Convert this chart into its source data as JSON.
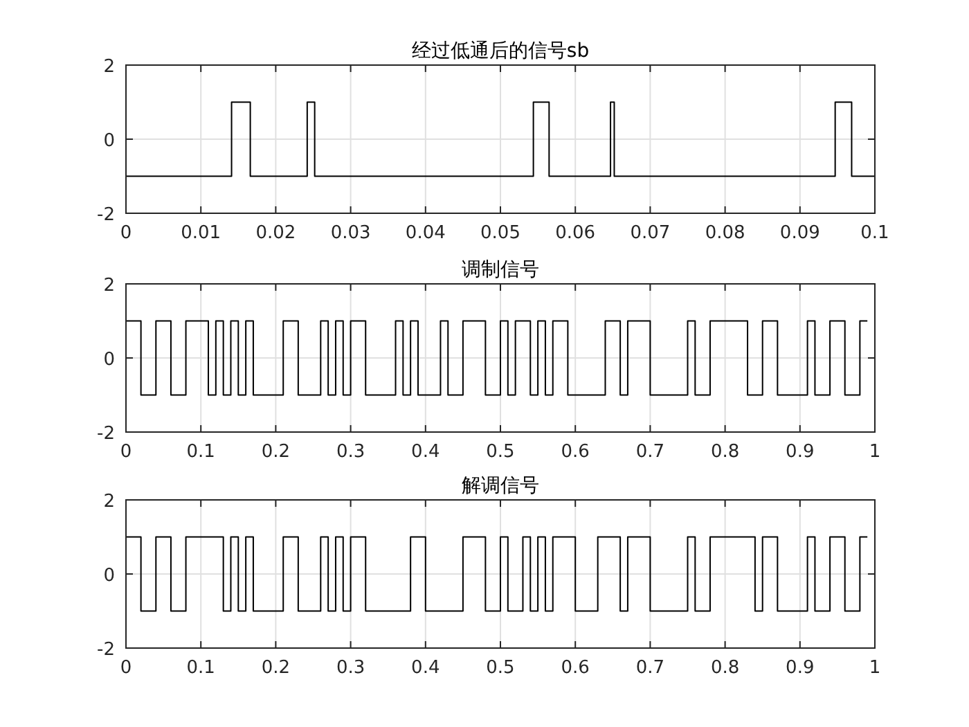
{
  "chart_data": [
    {
      "type": "step",
      "title": "经过低通后的信号sb",
      "xlim": [
        0,
        0.1
      ],
      "xticks": [
        0,
        0.01,
        0.02,
        0.03,
        0.04,
        0.05,
        0.06,
        0.07,
        0.08,
        0.09,
        0.1
      ],
      "ylim": [
        -2,
        2
      ],
      "yticks": [
        -2,
        0,
        2
      ],
      "grid": true,
      "series": [
        {
          "color": "#000000",
          "x": [
            0,
            0.0141,
            0.0166,
            0.0242,
            0.0252,
            0.0544,
            0.0565,
            0.0647,
            0.0652,
            0.0947,
            0.0969,
            0.1
          ],
          "values": [
            -1,
            1,
            -1,
            1,
            -1,
            1,
            -1,
            1,
            -1,
            1,
            -1,
            -1
          ]
        }
      ]
    },
    {
      "type": "step",
      "title": "调制信号",
      "xlim": [
        0,
        1
      ],
      "xticks": [
        0,
        0.1,
        0.2,
        0.3,
        0.4,
        0.5,
        0.6,
        0.7,
        0.8,
        0.9,
        1
      ],
      "ylim": [
        -2,
        2
      ],
      "yticks": [
        -2,
        0,
        2
      ],
      "grid": true,
      "series": [
        {
          "color": "#000000",
          "x": [
            0,
            0.02,
            0.04,
            0.06,
            0.08,
            0.11,
            0.12,
            0.13,
            0.14,
            0.15,
            0.16,
            0.17,
            0.21,
            0.23,
            0.26,
            0.27,
            0.28,
            0.29,
            0.3,
            0.32,
            0.36,
            0.37,
            0.38,
            0.39,
            0.42,
            0.43,
            0.45,
            0.48,
            0.5,
            0.51,
            0.52,
            0.54,
            0.55,
            0.56,
            0.57,
            0.59,
            0.64,
            0.66,
            0.67,
            0.7,
            0.75,
            0.76,
            0.78,
            0.83,
            0.85,
            0.87,
            0.91,
            0.92,
            0.94,
            0.96,
            0.98,
            0.99
          ],
          "values": [
            1,
            -1,
            1,
            -1,
            1,
            -1,
            1,
            -1,
            1,
            -1,
            1,
            -1,
            1,
            -1,
            1,
            -1,
            1,
            -1,
            1,
            -1,
            1,
            -1,
            1,
            -1,
            1,
            -1,
            1,
            -1,
            1,
            -1,
            1,
            -1,
            1,
            -1,
            1,
            -1,
            1,
            -1,
            1,
            -1,
            1,
            -1,
            1,
            -1,
            1,
            -1,
            1,
            -1,
            1,
            -1,
            1,
            1
          ]
        }
      ]
    },
    {
      "type": "step",
      "title": "解调信号",
      "xlim": [
        0,
        1
      ],
      "xticks": [
        0,
        0.1,
        0.2,
        0.3,
        0.4,
        0.5,
        0.6,
        0.7,
        0.8,
        0.9,
        1
      ],
      "ylim": [
        -2,
        2
      ],
      "yticks": [
        -2,
        0,
        2
      ],
      "grid": true,
      "series": [
        {
          "color": "#000000",
          "x": [
            0,
            0.02,
            0.04,
            0.06,
            0.08,
            0.13,
            0.14,
            0.15,
            0.16,
            0.17,
            0.21,
            0.23,
            0.26,
            0.27,
            0.28,
            0.29,
            0.3,
            0.32,
            0.38,
            0.4,
            0.45,
            0.48,
            0.5,
            0.51,
            0.53,
            0.54,
            0.55,
            0.56,
            0.57,
            0.6,
            0.63,
            0.66,
            0.67,
            0.7,
            0.75,
            0.76,
            0.78,
            0.84,
            0.85,
            0.87,
            0.91,
            0.92,
            0.94,
            0.96,
            0.98,
            0.99
          ],
          "values": [
            1,
            -1,
            1,
            -1,
            1,
            -1,
            1,
            -1,
            1,
            -1,
            1,
            -1,
            1,
            -1,
            1,
            -1,
            1,
            -1,
            1,
            -1,
            1,
            -1,
            1,
            -1,
            1,
            -1,
            1,
            -1,
            1,
            -1,
            1,
            -1,
            1,
            -1,
            1,
            -1,
            1,
            -1,
            1,
            -1,
            1,
            -1,
            1,
            -1,
            1,
            1
          ]
        }
      ]
    }
  ]
}
